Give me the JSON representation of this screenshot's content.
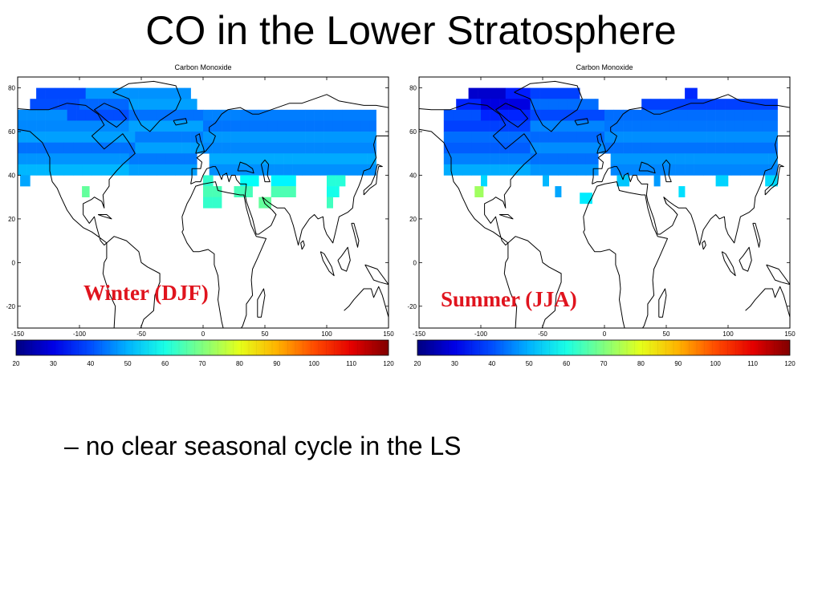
{
  "title": "CO in the Lower Stratosphere",
  "bullet": "– no clear seasonal cycle in the LS",
  "colors": {
    "label": "#e0141e",
    "land_outline": "#000000"
  },
  "chart_data": [
    {
      "type": "heatmap",
      "title": "Carbon Monoxide",
      "annotation": "Winter (DJF)",
      "xlim": [
        -150,
        150
      ],
      "ylim": [
        -30,
        85
      ],
      "x_ticks": [
        "-150",
        "-100",
        "-50",
        "0",
        "50",
        "100",
        "150"
      ],
      "y_ticks": [
        "80",
        "60",
        "40",
        "20",
        "0",
        "-20"
      ],
      "colorbar": {
        "min": 20,
        "max": 120,
        "ticks": [
          "20",
          "30",
          "40",
          "50",
          "60",
          "70",
          "80",
          "90",
          "100",
          "110",
          "120"
        ],
        "colormap": "jet"
      },
      "cell_size_deg": [
        7.5,
        5
      ],
      "rows": [
        {
          "lat": 75,
          "segments": [
            [
              -135,
              -95,
              42
            ],
            [
              -95,
              -60,
              46
            ],
            [
              -60,
              -10,
              48
            ]
          ]
        },
        {
          "lat": 70,
          "segments": [
            [
              -140,
              -100,
              40
            ],
            [
              -100,
              -60,
              45
            ],
            [
              -60,
              -5,
              47
            ]
          ]
        },
        {
          "lat": 65,
          "segments": [
            [
              -150,
              -110,
              44
            ],
            [
              -110,
              -60,
              40
            ],
            [
              -60,
              0,
              46
            ],
            [
              0,
              30,
              44
            ],
            [
              30,
              140,
              46
            ]
          ]
        },
        {
          "lat": 60,
          "segments": [
            [
              -150,
              -60,
              47
            ],
            [
              -60,
              0,
              46
            ],
            [
              0,
              140,
              44
            ]
          ]
        },
        {
          "lat": 55,
          "segments": [
            [
              -150,
              -55,
              47
            ],
            [
              -55,
              0,
              46
            ],
            [
              0,
              140,
              45
            ]
          ]
        },
        {
          "lat": 50,
          "segments": [
            [
              -150,
              -55,
              46
            ],
            [
              -55,
              0,
              47
            ],
            [
              0,
              140,
              47
            ]
          ]
        },
        {
          "lat": 45,
          "segments": [
            [
              -150,
              -60,
              47
            ],
            [
              -60,
              -5,
              47
            ],
            [
              5,
              140,
              48
            ]
          ]
        },
        {
          "lat": 40,
          "segments": [
            [
              -150,
              -60,
              48
            ],
            [
              -60,
              -5,
              48
            ],
            [
              5,
              140,
              49
            ]
          ]
        },
        {
          "lat": 35,
          "segments": [
            [
              -148,
              -140,
              50
            ],
            [
              0,
              8,
              60
            ],
            [
              30,
              45,
              58
            ],
            [
              55,
              75,
              59
            ],
            [
              100,
              115,
              60
            ]
          ]
        },
        {
          "lat": 30,
          "segments": [
            [
              -98,
              -92,
              66
            ],
            [
              0,
              15,
              66
            ],
            [
              25,
              40,
              62
            ],
            [
              55,
              75,
              65
            ],
            [
              100,
              110,
              62
            ]
          ]
        },
        {
          "lat": 25,
          "segments": [
            [
              0,
              15,
              65
            ],
            [
              45,
              55,
              66
            ],
            [
              100,
              105,
              65
            ]
          ]
        }
      ]
    },
    {
      "type": "heatmap",
      "title": "Carbon Monoxide",
      "annotation": "Summer (JJA)",
      "xlim": [
        -150,
        150
      ],
      "ylim": [
        -30,
        85
      ],
      "x_ticks": [
        "-150",
        "-100",
        "-50",
        "0",
        "50",
        "100",
        "150"
      ],
      "y_ticks": [
        "80",
        "60",
        "40",
        "20",
        "0",
        "-20"
      ],
      "colorbar": {
        "min": 20,
        "max": 120,
        "ticks": [
          "20",
          "30",
          "40",
          "50",
          "60",
          "70",
          "80",
          "90",
          "100",
          "110",
          "120"
        ],
        "colormap": "jet"
      },
      "cell_size_deg": [
        7.5,
        5
      ],
      "rows": [
        {
          "lat": 75,
          "segments": [
            [
              -110,
              -80,
              30
            ],
            [
              -80,
              -60,
              34
            ],
            [
              -60,
              -20,
              40
            ],
            [
              65,
              75,
              34
            ]
          ]
        },
        {
          "lat": 70,
          "segments": [
            [
              -120,
              -100,
              36
            ],
            [
              -100,
              -60,
              32
            ],
            [
              -60,
              -5,
              42
            ],
            [
              30,
              140,
              40
            ]
          ]
        },
        {
          "lat": 65,
          "segments": [
            [
              -130,
              -100,
              38
            ],
            [
              -100,
              -60,
              36
            ],
            [
              -60,
              0,
              42
            ],
            [
              0,
              140,
              42
            ]
          ]
        },
        {
          "lat": 60,
          "segments": [
            [
              -130,
              -60,
              40
            ],
            [
              -60,
              0,
              43
            ],
            [
              0,
              140,
              44
            ]
          ]
        },
        {
          "lat": 55,
          "segments": [
            [
              -130,
              -60,
              42
            ],
            [
              -60,
              0,
              44
            ],
            [
              0,
              140,
              44
            ]
          ]
        },
        {
          "lat": 50,
          "segments": [
            [
              -130,
              -60,
              44
            ],
            [
              -60,
              0,
              45
            ],
            [
              0,
              140,
              45
            ]
          ]
        },
        {
          "lat": 45,
          "segments": [
            [
              -130,
              -60,
              45
            ],
            [
              -60,
              -5,
              46
            ],
            [
              5,
              140,
              46
            ]
          ]
        },
        {
          "lat": 40,
          "segments": [
            [
              -130,
              -60,
              47
            ],
            [
              -60,
              -5,
              47
            ],
            [
              5,
              140,
              48
            ]
          ]
        },
        {
          "lat": 35,
          "segments": [
            [
              -100,
              -95,
              55
            ],
            [
              -50,
              -45,
              48
            ],
            [
              10,
              20,
              52
            ],
            [
              40,
              45,
              50
            ],
            [
              90,
              100,
              52
            ],
            [
              130,
              140,
              55
            ]
          ]
        },
        {
          "lat": 30,
          "segments": [
            [
              -105,
              -98,
              72
            ],
            [
              -40,
              -35,
              50
            ],
            [
              60,
              65,
              52
            ]
          ]
        },
        {
          "lat": 27,
          "segments": [
            [
              -20,
              -10,
              58
            ]
          ]
        }
      ]
    }
  ]
}
